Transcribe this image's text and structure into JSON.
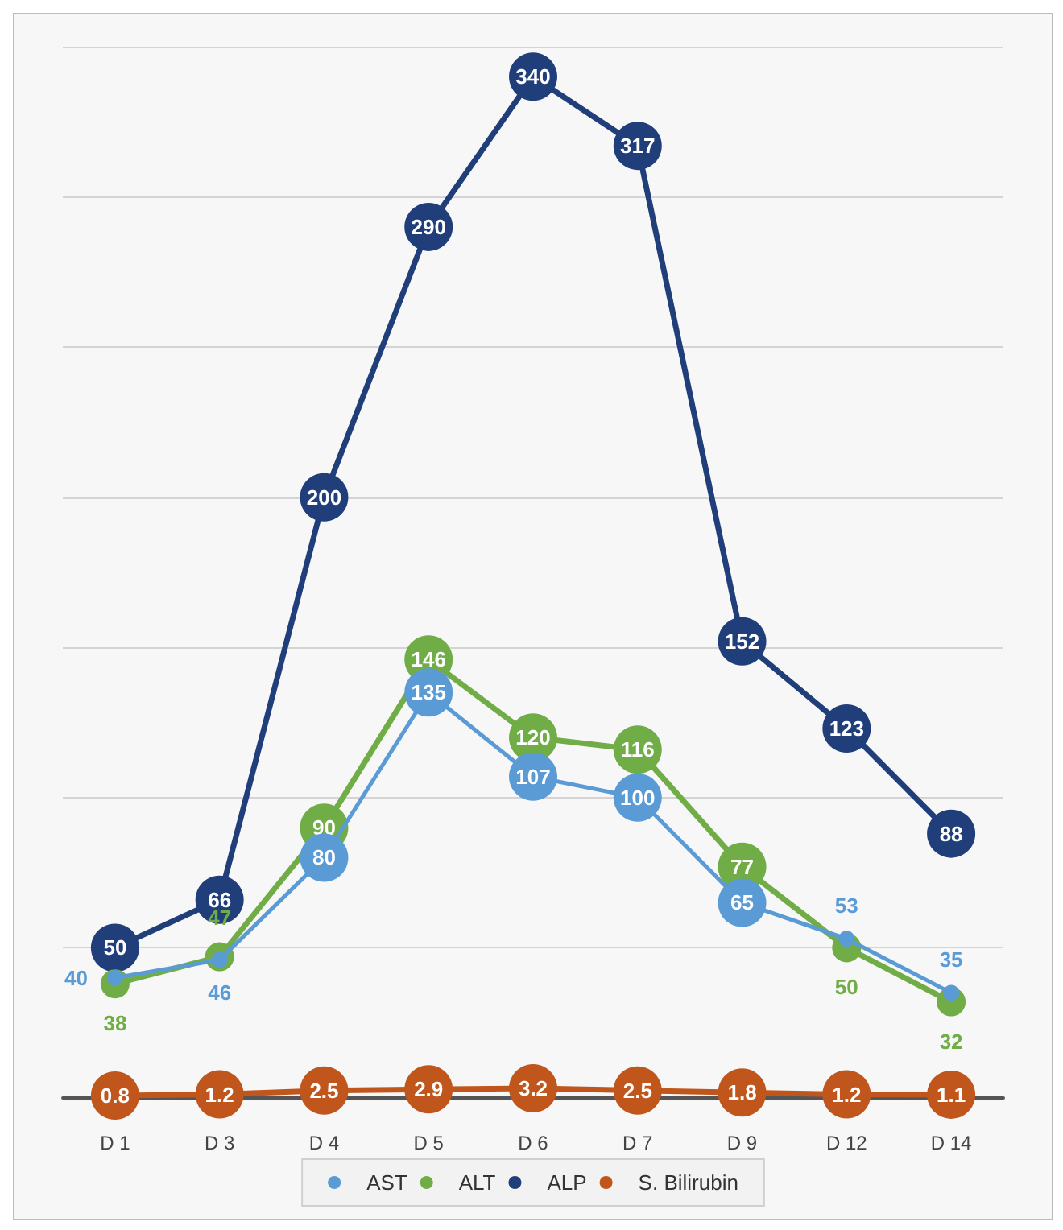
{
  "chart_data": {
    "type": "line",
    "categories": [
      "D 1",
      "D 3",
      "D 4",
      "D 5",
      "D 6",
      "D 7",
      "D 9",
      "D 12",
      "D 14"
    ],
    "series": [
      {
        "name": "AST",
        "color": "#5b9bd5",
        "values": [
          40,
          46,
          80,
          135,
          107,
          100,
          65,
          53,
          35
        ]
      },
      {
        "name": "ALT",
        "color": "#70ad47",
        "values": [
          38,
          47,
          90,
          146,
          120,
          116,
          77,
          50,
          32
        ]
      },
      {
        "name": "ALP",
        "color": "#203f7a",
        "values": [
          50,
          66,
          200,
          290,
          340,
          317,
          152,
          123,
          88
        ]
      },
      {
        "name": "S. Bilirubin",
        "color": "#c0561c",
        "values": [
          0.8,
          1.2,
          2.5,
          2.9,
          3.2,
          2.5,
          1.8,
          1.2,
          1.1
        ]
      }
    ],
    "yticks": [
      {
        "value": 0,
        "label": null
      },
      {
        "value": 50,
        "label": null
      },
      {
        "value": 100,
        "label": null
      },
      {
        "value": 150,
        "label": null
      },
      {
        "value": 200,
        "label": null
      },
      {
        "value": 250,
        "label": null
      },
      {
        "value": 300,
        "label": null
      },
      {
        "value": 350,
        "label": null
      }
    ],
    "tick_labels": "x",
    "grid": "y",
    "data_labels": true,
    "legend": "bottom",
    "marker": "circle",
    "line_style": "solid"
  }
}
